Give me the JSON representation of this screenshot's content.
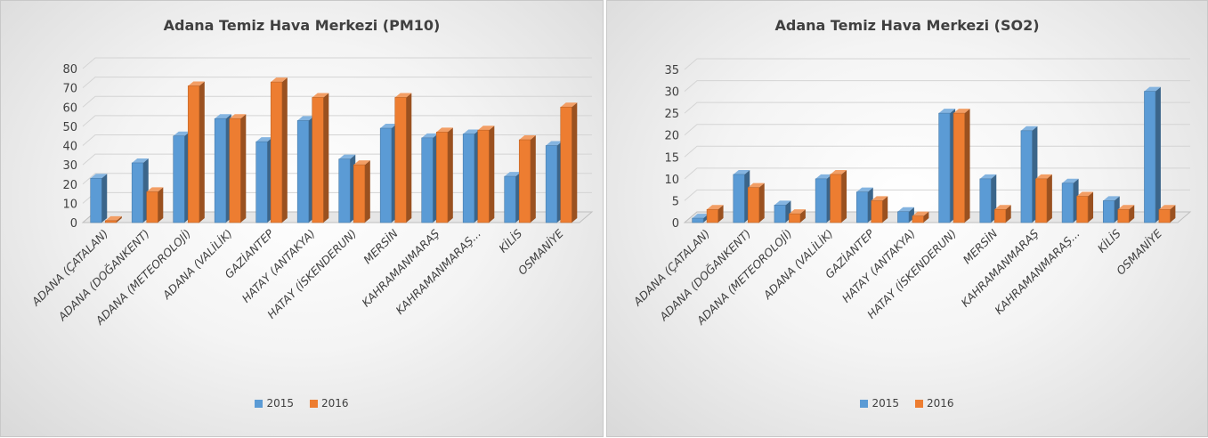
{
  "chart_data": [
    {
      "type": "bar",
      "title": "Adana Temiz Hava Merkezi (PM10)",
      "categories": [
        "ADANA (ÇATALAN)",
        "ADANA (DOĞANKENT)",
        "ADANA (METEOROLOJİ)",
        "ADANA (VALİLİK)",
        "GAZİANTEP",
        "HATAY (ANTAKYA)",
        "HATAY (İSKENDERUN)",
        "MERSİN",
        "KAHRAMANMARAŞ",
        "KAHRAMANMARAŞ...",
        "KİLİS",
        "OSMANİYE"
      ],
      "series": [
        {
          "name": "2015",
          "color": "#5b9bd5",
          "values": [
            23,
            31,
            45,
            54,
            42,
            53,
            33,
            49,
            44,
            46,
            24,
            40
          ]
        },
        {
          "name": "2016",
          "color": "#ed7d31",
          "values": [
            1,
            16,
            71,
            54,
            73,
            65,
            30,
            65,
            47,
            48,
            43,
            60
          ]
        }
      ],
      "yticks": [
        "0",
        "10",
        "20",
        "30",
        "40",
        "50",
        "60",
        "70",
        "80"
      ],
      "ylim": [
        0,
        80
      ],
      "grid": true,
      "legend": "bottom"
    },
    {
      "type": "bar",
      "title": "Adana Temiz Hava Merkezi (SO2)",
      "categories": [
        "ADANA (ÇATALAN)",
        "ADANA (DOĞANKENT)",
        "ADANA (METEOROLOJİ)",
        "ADANA (VALİLİK)",
        "GAZİANTEP",
        "HATAY (ANTAKYA)",
        "HATAY (İSKENDERUN)",
        "MERSİN",
        "KAHRAMANMARAŞ",
        "KAHRAMANMARAŞ...",
        "KİLİS",
        "OSMANİYE"
      ],
      "series": [
        {
          "name": "2015",
          "color": "#5b9bd5",
          "values": [
            1,
            11,
            4,
            10,
            7,
            2.5,
            25,
            10,
            21,
            9,
            5,
            30
          ]
        },
        {
          "name": "2016",
          "color": "#ed7d31",
          "values": [
            3,
            8,
            2,
            11,
            5,
            1.5,
            25,
            3,
            10,
            6,
            3,
            3
          ]
        }
      ],
      "yticks": [
        "0",
        "5",
        "10",
        "15",
        "20",
        "25",
        "30",
        "35"
      ],
      "ylim": [
        0,
        35
      ],
      "grid": true,
      "legend": "bottom"
    }
  ]
}
